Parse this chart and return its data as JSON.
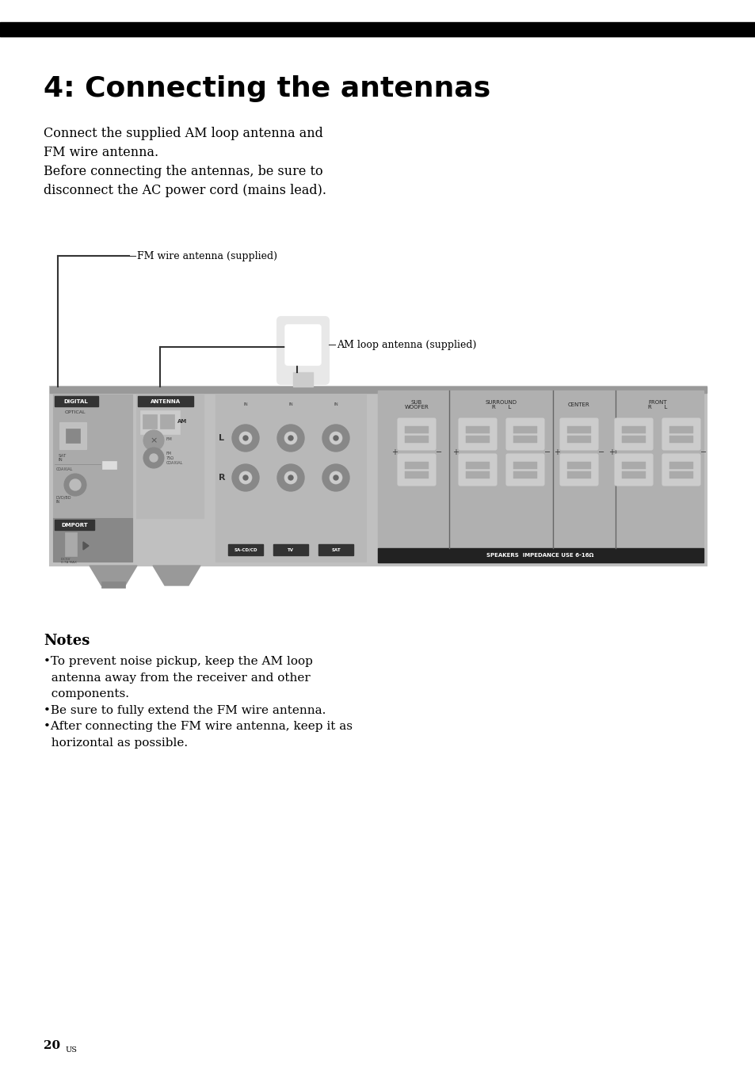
{
  "page_background": "#ffffff",
  "header_bar_color": "#000000",
  "title": "4: Connecting the antennas",
  "body_text": "Connect the supplied AM loop antenna and\nFM wire antenna.\nBefore connecting the antennas, be sure to\ndisconnect the AC power cord (mains lead).",
  "fm_label": "FM wire antenna (supplied)",
  "am_label": "AM loop antenna (supplied)",
  "notes_title": "Notes",
  "note1": "•To prevent noise pickup, keep the AM loop\n  antenna away from the receiver and other\n  components.",
  "note2": "•Be sure to fully extend the FM wire antenna.",
  "note3": "•After connecting the FM wire antenna, keep it as\n  horizontal as possible.",
  "page_num": "20",
  "page_sup": "US"
}
